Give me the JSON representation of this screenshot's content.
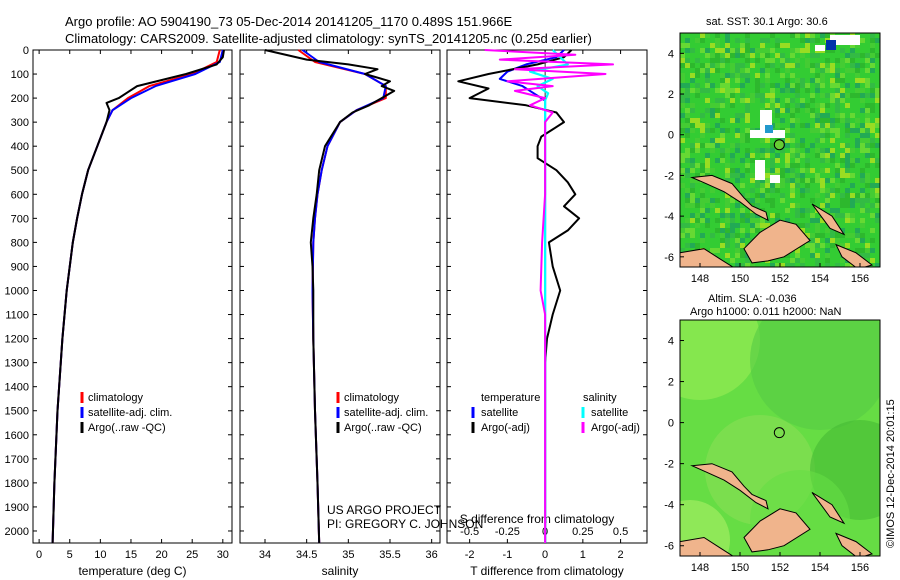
{
  "title_line1": "Argo profile: AO 5904190_73 05-Dec-2014 20141205_1170 0.489S 151.966E",
  "title_line2": "Climatology: CARS2009. Satellite-adjusted climatology: synTS_20141205.nc (0.25d earlier)",
  "depth_ticks": [
    0,
    100,
    200,
    300,
    400,
    500,
    600,
    700,
    800,
    900,
    1000,
    1100,
    1200,
    1300,
    1400,
    1500,
    1600,
    1700,
    1800,
    1900,
    2000
  ],
  "project_text": "US ARGO PROJECT",
  "pi_text": "PI: GREGORY C. JOHNSON",
  "stamp": "©IMOS 12-Dec-2014 20:01:15",
  "colors": {
    "clim": "#ff0000",
    "sat": "#0000ff",
    "argo": "#000000",
    "sat_s": "#00ffff",
    "argo_s": "#ff00ff",
    "land": "#f0b48c",
    "ocean_sst": "#33cc33",
    "ocean_sla": "#66dd44"
  },
  "chart_data": [
    {
      "type": "line",
      "name": "temperature",
      "xlabel": "temperature (deg C)",
      "xlim": [
        -1,
        31.5
      ],
      "ylim": [
        2050,
        0
      ],
      "x_ticks": [
        0,
        5,
        10,
        15,
        20,
        25,
        30
      ],
      "x_tick_labels": [
        "0",
        "5",
        "10",
        "15",
        "20",
        "25",
        "30"
      ],
      "legend": [
        "climatology",
        "satellite-adj. clim.",
        "Argo(..raw -QC)"
      ],
      "series": [
        {
          "name": "climatology",
          "depth": [
            0,
            50,
            100,
            150,
            200,
            250,
            300,
            400,
            500,
            600,
            700,
            800,
            1000,
            1200,
            1500,
            1800,
            2050
          ],
          "values": [
            29.5,
            29.0,
            25.0,
            18.0,
            14.5,
            12.0,
            11.0,
            9.5,
            8.0,
            7.0,
            6.2,
            5.5,
            4.5,
            3.8,
            3.0,
            2.5,
            2.2
          ]
        },
        {
          "name": "satellite-adj. clim.",
          "depth": [
            0,
            50,
            100,
            150,
            200,
            250,
            300,
            400,
            500,
            600,
            700,
            800,
            1000,
            1200,
            1500,
            1800,
            2050
          ],
          "values": [
            30.0,
            29.5,
            25.5,
            19.0,
            15.0,
            12.0,
            11.0,
            9.5,
            8.0,
            7.0,
            6.2,
            5.5,
            4.5,
            3.8,
            3.0,
            2.5,
            2.2
          ]
        },
        {
          "name": "Argo(..raw -QC)",
          "depth": [
            0,
            30,
            60,
            100,
            150,
            200,
            220,
            250,
            300,
            400,
            500,
            600,
            700,
            800,
            1000,
            1200,
            1500,
            1800,
            2050
          ],
          "values": [
            30.2,
            30.0,
            29.0,
            24.0,
            16.0,
            13.0,
            11.0,
            11.5,
            11.0,
            9.5,
            8.0,
            7.0,
            6.2,
            5.5,
            4.5,
            3.8,
            3.0,
            2.5,
            2.2
          ]
        }
      ]
    },
    {
      "type": "line",
      "name": "salinity",
      "xlabel": "salinity",
      "xlim": [
        33.7,
        36.1
      ],
      "ylim": [
        2050,
        0
      ],
      "x_ticks": [
        34,
        34.5,
        35,
        35.5,
        36
      ],
      "x_tick_labels": [
        "34",
        "34.5",
        "35",
        "35.5",
        "36"
      ],
      "legend": [
        "climatology",
        "satellite-adj. clim.",
        "Argo(..raw -QC)"
      ],
      "series": [
        {
          "name": "climatology",
          "depth": [
            0,
            50,
            100,
            150,
            200,
            250,
            300,
            400,
            500,
            600,
            700,
            800,
            1000,
            1200,
            1500,
            1800,
            2050
          ],
          "values": [
            34.4,
            34.6,
            35.2,
            35.45,
            35.45,
            35.1,
            34.9,
            34.75,
            34.68,
            34.63,
            34.6,
            34.58,
            34.57,
            34.58,
            34.6,
            34.63,
            34.65
          ]
        },
        {
          "name": "satellite-adj. clim.",
          "depth": [
            0,
            50,
            100,
            150,
            200,
            250,
            300,
            400,
            500,
            600,
            700,
            800,
            1000,
            1200,
            1500,
            1800,
            2050
          ],
          "values": [
            34.45,
            34.65,
            35.2,
            35.45,
            35.42,
            35.1,
            34.9,
            34.75,
            34.68,
            34.63,
            34.6,
            34.58,
            34.57,
            34.58,
            34.6,
            34.63,
            34.65
          ]
        },
        {
          "name": "Argo(..raw -QC)",
          "depth": [
            0,
            40,
            60,
            80,
            100,
            130,
            150,
            170,
            200,
            230,
            260,
            300,
            400,
            500,
            600,
            700,
            800,
            900,
            1000,
            1200,
            1500,
            1800,
            2050
          ],
          "values": [
            34.0,
            34.5,
            35.0,
            35.35,
            35.2,
            35.5,
            35.4,
            35.55,
            35.4,
            35.25,
            35.05,
            34.9,
            34.72,
            34.65,
            34.62,
            34.58,
            34.55,
            34.57,
            34.58,
            34.58,
            34.6,
            34.63,
            34.65
          ]
        }
      ]
    },
    {
      "type": "line",
      "name": "difference",
      "xlabel": "T difference from climatology",
      "xlabel_top": "S difference from climatology",
      "xlim": [
        -2.6,
        2.7
      ],
      "ylim": [
        2050,
        0
      ],
      "x_ticks": [
        -2,
        -1,
        0,
        1,
        2
      ],
      "x_tick_labels": [
        "-2",
        "-1",
        "0",
        "1",
        "2"
      ],
      "s_tick_labels": [
        "-0.5",
        "-0.25",
        "0",
        "0.25",
        "0.5"
      ],
      "s_scale": 4,
      "legend_titles": [
        "temperature",
        "salinity"
      ],
      "legend": [
        "satellite",
        "Argo(-adj)",
        "satellite",
        "Argo(-adj)"
      ],
      "series": [
        {
          "name": "T satellite",
          "depth": [
            0,
            30,
            60,
            90,
            120,
            150,
            180,
            210,
            250,
            300,
            400,
            600,
            1000,
            1500,
            2050
          ],
          "values": [
            0.5,
            0.3,
            -0.5,
            -1.0,
            -1.2,
            -0.6,
            -0.3,
            0.0,
            0.0,
            0.0,
            0.0,
            0.0,
            0.0,
            0.0,
            0.0
          ]
        },
        {
          "name": "T Argo(-adj)",
          "depth": [
            0,
            30,
            60,
            100,
            130,
            160,
            200,
            230,
            260,
            300,
            330,
            360,
            400,
            450,
            500,
            550,
            600,
            650,
            700,
            750,
            800,
            900,
            1000,
            1100,
            1200,
            1300,
            1500,
            1800,
            2050
          ],
          "values": [
            0.7,
            0.5,
            -0.2,
            -1.5,
            -2.3,
            -1.5,
            -2.0,
            -0.5,
            0.3,
            0.5,
            0.2,
            -0.1,
            -0.2,
            -0.2,
            0.3,
            0.6,
            0.8,
            0.5,
            0.9,
            0.6,
            0.1,
            0.2,
            0.4,
            0.2,
            0.05,
            0.0,
            0.0,
            0.0,
            0.0
          ]
        },
        {
          "name": "S satellite",
          "depth": [
            0,
            30,
            60,
            90,
            120,
            150,
            180,
            210,
            250,
            300,
            400,
            600,
            1000,
            1500,
            2050
          ],
          "values": [
            0.05,
            0.1,
            0.15,
            -0.1,
            0.05,
            -0.05,
            0.02,
            0.0,
            0.0,
            0.0,
            0.0,
            0.0,
            0.0,
            0.0,
            0.0
          ]
        },
        {
          "name": "S Argo(-adj)",
          "depth": [
            0,
            20,
            40,
            60,
            80,
            100,
            130,
            150,
            170,
            200,
            230,
            260,
            300,
            400,
            600,
            800,
            1000,
            1100,
            1200,
            1500,
            1800,
            2050
          ],
          "values": [
            -0.4,
            0.2,
            -0.3,
            0.45,
            -0.2,
            0.4,
            -0.25,
            0.05,
            -0.2,
            0.0,
            -0.1,
            0.05,
            0.0,
            0.0,
            0.0,
            -0.02,
            -0.03,
            0.0,
            0.0,
            0.0,
            0.0,
            0.0
          ]
        }
      ]
    },
    {
      "type": "heatmap",
      "name": "SST map",
      "title": "sat. SST: 30.1  Argo: 30.6",
      "xlim": [
        147,
        157
      ],
      "ylim": [
        -6.5,
        5
      ],
      "x_ticks": [
        148,
        150,
        152,
        154,
        156
      ],
      "y_ticks": [
        4,
        2,
        0,
        -2,
        -4,
        -6
      ],
      "x_tick_labels": [
        "148",
        "150",
        "152",
        "154",
        "156"
      ],
      "y_tick_labels": [
        "4",
        "2",
        "0",
        "-2",
        "-4",
        "-6"
      ],
      "float_position": [
        151.966,
        -0.489
      ]
    },
    {
      "type": "heatmap",
      "name": "SLA map",
      "title": "Altim. SLA: -0.036",
      "subtitle": "Argo h1000: 0.011  h2000: NaN",
      "xlim": [
        147,
        157
      ],
      "ylim": [
        -6.5,
        5
      ],
      "x_ticks": [
        148,
        150,
        152,
        154,
        156
      ],
      "y_ticks": [
        4,
        2,
        0,
        -2,
        -4,
        -6
      ],
      "x_tick_labels": [
        "148",
        "150",
        "152",
        "154",
        "156"
      ],
      "y_tick_labels": [
        "4",
        "2",
        "0",
        "-2",
        "-4",
        "-6"
      ],
      "float_position": [
        151.966,
        -0.489
      ]
    }
  ]
}
